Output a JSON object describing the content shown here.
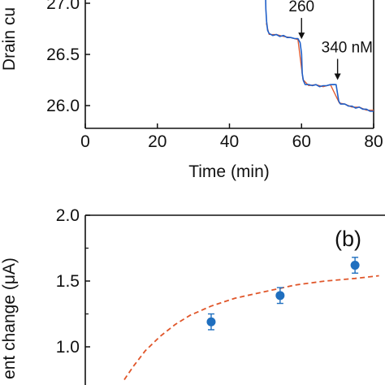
{
  "chart_data": [
    {
      "type": "line",
      "title": "",
      "xlabel": "Time (min)",
      "ylabel": "Drain cu",
      "xlim": [
        0,
        80
      ],
      "ylim": [
        25.85,
        27.1
      ],
      "x_ticks": [
        "0",
        "20",
        "40",
        "60",
        "80"
      ],
      "y_ticks": [
        "27.0",
        "26.5",
        "26.0"
      ],
      "series": [
        {
          "color": "#1f5fc8",
          "points": [
            [
              50.0,
              27.1
            ],
            [
              50.1,
              26.95
            ],
            [
              50.3,
              26.82
            ],
            [
              50.6,
              26.74
            ],
            [
              51,
              26.7
            ],
            [
              52,
              26.69
            ],
            [
              53,
              26.69
            ],
            [
              54,
              26.68
            ],
            [
              55,
              26.68
            ],
            [
              56,
              26.67
            ],
            [
              57,
              26.66
            ],
            [
              58,
              26.66
            ],
            [
              59,
              26.65
            ],
            [
              59.6,
              26.62
            ],
            [
              60.0,
              26.5
            ],
            [
              60.2,
              26.32
            ],
            [
              60.5,
              26.24
            ],
            [
              61,
              26.21
            ],
            [
              62,
              26.2
            ],
            [
              63,
              26.2
            ],
            [
              64,
              26.2
            ],
            [
              65,
              26.19
            ],
            [
              66,
              26.19
            ],
            [
              67,
              26.2
            ],
            [
              68,
              26.2
            ],
            [
              69,
              26.21
            ],
            [
              69.6,
              26.2
            ],
            [
              70.0,
              26.12
            ],
            [
              70.3,
              26.04
            ],
            [
              70.8,
              26.02
            ],
            [
              72,
              26.01
            ],
            [
              73,
              26.0
            ],
            [
              74,
              25.99
            ],
            [
              75,
              25.98
            ],
            [
              76,
              25.98
            ],
            [
              77,
              25.97
            ],
            [
              78,
              25.96
            ],
            [
              79,
              25.95
            ],
            [
              80,
              25.94
            ]
          ]
        },
        {
          "color": "#e0562a",
          "points": [
            [
              50.2,
              26.8
            ],
            [
              51,
              26.7
            ],
            [
              53,
              26.69
            ],
            [
              55,
              26.68
            ],
            [
              57,
              26.66
            ],
            [
              59,
              26.65
            ],
            [
              60.4,
              26.25
            ],
            [
              62,
              26.2
            ],
            [
              64,
              26.2
            ],
            [
              66,
              26.19
            ],
            [
              68,
              26.2
            ],
            [
              70.5,
              26.03
            ],
            [
              72,
              26.01
            ],
            [
              74,
              25.99
            ],
            [
              76,
              25.98
            ],
            [
              78,
              25.96
            ],
            [
              80,
              25.95
            ]
          ]
        }
      ],
      "annotations": [
        {
          "label": "260",
          "x": 60,
          "y": 26.65
        },
        {
          "label": "340 nM",
          "x": 70,
          "y": 26.25
        }
      ]
    },
    {
      "type": "scatter",
      "title": "",
      "panel_label": "(b)",
      "xlabel": "",
      "ylabel": "ent change (μA)",
      "ylim": [
        0.6,
        2.0
      ],
      "xlim": [
        0,
        100
      ],
      "y_ticks": [
        "2.0",
        "1.5",
        "1.0"
      ],
      "points": [
        {
          "x": 42,
          "y": 1.19,
          "err": 0.06
        },
        {
          "x": 65,
          "y": 1.39,
          "err": 0.06
        },
        {
          "x": 90,
          "y": 1.62,
          "err": 0.06
        }
      ],
      "point_color": "#1f6fbf",
      "fit_curve": {
        "style": "dashed",
        "color": "#e0562a",
        "points": [
          [
            13,
            0.75
          ],
          [
            16,
            0.85
          ],
          [
            20,
            0.97
          ],
          [
            25,
            1.08
          ],
          [
            30,
            1.17
          ],
          [
            35,
            1.24
          ],
          [
            42,
            1.31
          ],
          [
            50,
            1.37
          ],
          [
            60,
            1.42
          ],
          [
            70,
            1.47
          ],
          [
            80,
            1.5
          ],
          [
            90,
            1.52
          ],
          [
            98,
            1.54
          ]
        ]
      }
    }
  ]
}
